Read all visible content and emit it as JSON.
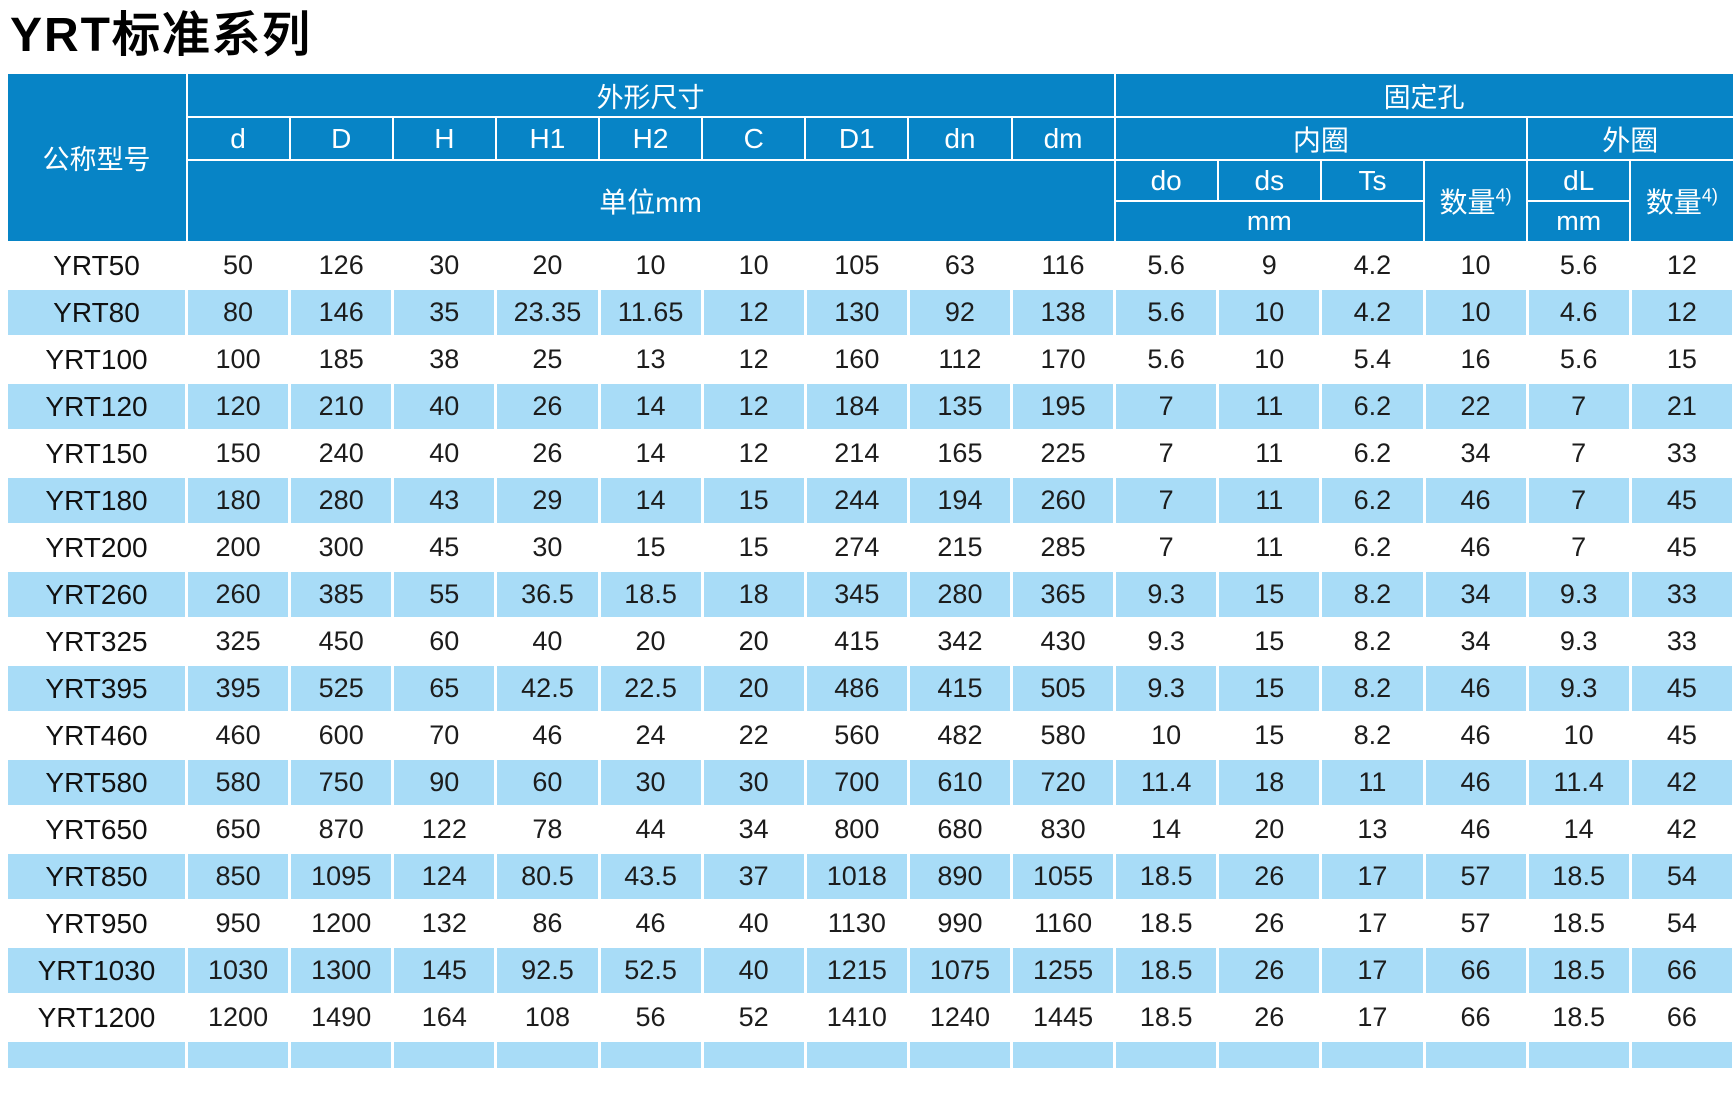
{
  "page": {
    "title": "YRT标准系列"
  },
  "table": {
    "header": {
      "model_label": "公称型号",
      "dimensions_group": "外形尺寸",
      "holes_group": "固定孔",
      "dim_columns": [
        "d",
        "D",
        "H",
        "H1",
        "H2",
        "C",
        "D1",
        "dn",
        "dm"
      ],
      "dim_unit": "单位mm",
      "inner_ring_label": "内圈",
      "outer_ring_label": "外圈",
      "inner_columns": [
        "do",
        "ds",
        "Ts"
      ],
      "qty_label": "数量",
      "qty_sup": "4)",
      "outer_dl_label": "dL",
      "mm_label": "mm"
    },
    "rows": [
      {
        "model": "YRT50",
        "values": [
          "50",
          "126",
          "30",
          "20",
          "10",
          "10",
          "105",
          "63",
          "116",
          "5.6",
          "9",
          "4.2",
          "10",
          "5.6",
          "12"
        ]
      },
      {
        "model": "YRT80",
        "values": [
          "80",
          "146",
          "35",
          "23.35",
          "11.65",
          "12",
          "130",
          "92",
          "138",
          "5.6",
          "10",
          "4.2",
          "10",
          "4.6",
          "12"
        ]
      },
      {
        "model": "YRT100",
        "values": [
          "100",
          "185",
          "38",
          "25",
          "13",
          "12",
          "160",
          "112",
          "170",
          "5.6",
          "10",
          "5.4",
          "16",
          "5.6",
          "15"
        ]
      },
      {
        "model": "YRT120",
        "values": [
          "120",
          "210",
          "40",
          "26",
          "14",
          "12",
          "184",
          "135",
          "195",
          "7",
          "11",
          "6.2",
          "22",
          "7",
          "21"
        ]
      },
      {
        "model": "YRT150",
        "values": [
          "150",
          "240",
          "40",
          "26",
          "14",
          "12",
          "214",
          "165",
          "225",
          "7",
          "11",
          "6.2",
          "34",
          "7",
          "33"
        ]
      },
      {
        "model": "YRT180",
        "values": [
          "180",
          "280",
          "43",
          "29",
          "14",
          "15",
          "244",
          "194",
          "260",
          "7",
          "11",
          "6.2",
          "46",
          "7",
          "45"
        ]
      },
      {
        "model": "YRT200",
        "values": [
          "200",
          "300",
          "45",
          "30",
          "15",
          "15",
          "274",
          "215",
          "285",
          "7",
          "11",
          "6.2",
          "46",
          "7",
          "45"
        ]
      },
      {
        "model": "YRT260",
        "values": [
          "260",
          "385",
          "55",
          "36.5",
          "18.5",
          "18",
          "345",
          "280",
          "365",
          "9.3",
          "15",
          "8.2",
          "34",
          "9.3",
          "33"
        ]
      },
      {
        "model": "YRT325",
        "values": [
          "325",
          "450",
          "60",
          "40",
          "20",
          "20",
          "415",
          "342",
          "430",
          "9.3",
          "15",
          "8.2",
          "34",
          "9.3",
          "33"
        ]
      },
      {
        "model": "YRT395",
        "values": [
          "395",
          "525",
          "65",
          "42.5",
          "22.5",
          "20",
          "486",
          "415",
          "505",
          "9.3",
          "15",
          "8.2",
          "46",
          "9.3",
          "45"
        ]
      },
      {
        "model": "YRT460",
        "values": [
          "460",
          "600",
          "70",
          "46",
          "24",
          "22",
          "560",
          "482",
          "580",
          "10",
          "15",
          "8.2",
          "46",
          "10",
          "45"
        ]
      },
      {
        "model": "YRT580",
        "values": [
          "580",
          "750",
          "90",
          "60",
          "30",
          "30",
          "700",
          "610",
          "720",
          "11.4",
          "18",
          "11",
          "46",
          "11.4",
          "42"
        ]
      },
      {
        "model": "YRT650",
        "values": [
          "650",
          "870",
          "122",
          "78",
          "44",
          "34",
          "800",
          "680",
          "830",
          "14",
          "20",
          "13",
          "46",
          "14",
          "42"
        ]
      },
      {
        "model": "YRT850",
        "values": [
          "850",
          "1095",
          "124",
          "80.5",
          "43.5",
          "37",
          "1018",
          "890",
          "1055",
          "18.5",
          "26",
          "17",
          "57",
          "18.5",
          "54"
        ]
      },
      {
        "model": "YRT950",
        "values": [
          "950",
          "1200",
          "132",
          "86",
          "46",
          "40",
          "1130",
          "990",
          "1160",
          "18.5",
          "26",
          "17",
          "57",
          "18.5",
          "54"
        ]
      },
      {
        "model": "YRT1030",
        "values": [
          "1030",
          "1300",
          "145",
          "92.5",
          "52.5",
          "40",
          "1215",
          "1075",
          "1255",
          "18.5",
          "26",
          "17",
          "66",
          "18.5",
          "66"
        ]
      },
      {
        "model": "YRT1200",
        "values": [
          "1200",
          "1490",
          "164",
          "108",
          "56",
          "52",
          "1410",
          "1240",
          "1445",
          "18.5",
          "26",
          "17",
          "66",
          "18.5",
          "66"
        ]
      }
    ],
    "colors": {
      "header_blue": "#0784C6",
      "stripe_blue": "#A8DCF7",
      "text_dark": "#1c1c1c"
    }
  }
}
